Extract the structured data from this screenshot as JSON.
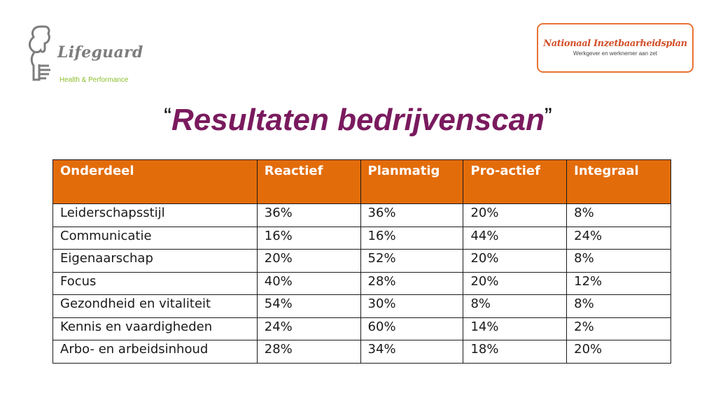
{
  "logos": {
    "left": {
      "name": "Lifeguard",
      "tagline": "Health & Performance"
    },
    "right": {
      "title": "Nationaal Inzetbaarheidsplan",
      "subtitle": "Werkgever en werknemer aan zet"
    }
  },
  "slide": {
    "open_quote": "“",
    "title": "Resultaten bedrijvenscan",
    "close_quote": "”"
  },
  "table": {
    "headers": [
      "Onderdeel",
      "Reactief",
      "Planmatig",
      "Pro-actief",
      "Integraal"
    ],
    "rows": [
      [
        "Leiderschapsstijl",
        "36%",
        "36%",
        "20%",
        "8%"
      ],
      [
        "Communicatie",
        "16%",
        "16%",
        "44%",
        "24%"
      ],
      [
        "Eigenaarschap",
        "20%",
        "52%",
        "20%",
        "8%"
      ],
      [
        "Focus",
        "40%",
        "28%",
        "20%",
        "12%"
      ],
      [
        "Gezondheid en vitaliteit",
        "54%",
        "30%",
        "8%",
        "8%"
      ],
      [
        "Kennis en vaardigheden",
        "24%",
        "60%",
        "14%",
        "2%"
      ],
      [
        "Arbo- en arbeidsinhoud",
        "28%",
        "34%",
        "18%",
        "20%"
      ]
    ]
  },
  "colors": {
    "header_bg": "#e36c0a",
    "title": "#7a1a5e",
    "logo_border": "#e87234",
    "tagline": "#8cbd2a"
  }
}
